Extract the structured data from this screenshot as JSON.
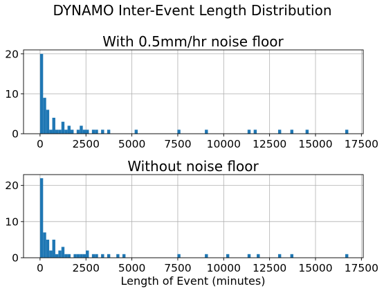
{
  "figure": {
    "suptitle": "DYNAMO Inter-Event Length Distribution"
  },
  "chart_data": [
    {
      "type": "bar",
      "subtype": "histogram",
      "title": "With 0.5mm/hr noise floor",
      "xlabel": "",
      "ylabel": "",
      "xlim": [
        -900,
        17600
      ],
      "ylim": [
        0,
        21
      ],
      "xticks": [
        0,
        2500,
        5000,
        7500,
        10000,
        12500,
        15000,
        17500
      ],
      "xtick_labels": [
        "0",
        "2500",
        "5000",
        "7500",
        "10000",
        "12500",
        "15000",
        "17500"
      ],
      "yticks": [
        0,
        10,
        20
      ],
      "ytick_labels": [
        "0",
        "10",
        "20"
      ],
      "grid": true,
      "color": "#1f77b4",
      "bin_width": 166.2,
      "bins": [
        {
          "x": 0,
          "count": 20
        },
        {
          "x": 166,
          "count": 9
        },
        {
          "x": 332,
          "count": 6
        },
        {
          "x": 499,
          "count": 1
        },
        {
          "x": 665,
          "count": 4
        },
        {
          "x": 831,
          "count": 1
        },
        {
          "x": 997,
          "count": 1
        },
        {
          "x": 1163,
          "count": 3
        },
        {
          "x": 1330,
          "count": 1
        },
        {
          "x": 1496,
          "count": 2
        },
        {
          "x": 1662,
          "count": 1
        },
        {
          "x": 1994,
          "count": 1
        },
        {
          "x": 2161,
          "count": 2
        },
        {
          "x": 2327,
          "count": 1
        },
        {
          "x": 2493,
          "count": 1
        },
        {
          "x": 2825,
          "count": 1
        },
        {
          "x": 2992,
          "count": 1
        },
        {
          "x": 3324,
          "count": 1
        },
        {
          "x": 3656,
          "count": 1
        },
        {
          "x": 5152,
          "count": 1
        },
        {
          "x": 7479,
          "count": 1
        },
        {
          "x": 8975,
          "count": 1
        },
        {
          "x": 11301,
          "count": 1
        },
        {
          "x": 11634,
          "count": 1
        },
        {
          "x": 12964,
          "count": 1
        },
        {
          "x": 13628,
          "count": 1
        },
        {
          "x": 14459,
          "count": 1
        },
        {
          "x": 16620,
          "count": 1
        }
      ]
    },
    {
      "type": "bar",
      "subtype": "histogram",
      "title": "Without noise floor",
      "xlabel": "Length of Event (minutes)",
      "ylabel": "",
      "xlim": [
        -900,
        17600
      ],
      "ylim": [
        0,
        23
      ],
      "xticks": [
        0,
        2500,
        5000,
        7500,
        10000,
        12500,
        15000,
        17500
      ],
      "xtick_labels": [
        "0",
        "2500",
        "5000",
        "7500",
        "10000",
        "12500",
        "15000",
        "17500"
      ],
      "yticks": [
        0,
        10,
        20
      ],
      "ytick_labels": [
        "0",
        "10",
        "20"
      ],
      "grid": true,
      "color": "#1f77b4",
      "bin_width": 166.2,
      "bins": [
        {
          "x": 0,
          "count": 22
        },
        {
          "x": 166,
          "count": 7
        },
        {
          "x": 332,
          "count": 5
        },
        {
          "x": 499,
          "count": 2
        },
        {
          "x": 665,
          "count": 5
        },
        {
          "x": 831,
          "count": 1
        },
        {
          "x": 997,
          "count": 2
        },
        {
          "x": 1163,
          "count": 3
        },
        {
          "x": 1330,
          "count": 1
        },
        {
          "x": 1496,
          "count": 1
        },
        {
          "x": 1828,
          "count": 1
        },
        {
          "x": 1994,
          "count": 1
        },
        {
          "x": 2161,
          "count": 1
        },
        {
          "x": 2327,
          "count": 1
        },
        {
          "x": 2493,
          "count": 2
        },
        {
          "x": 2825,
          "count": 1
        },
        {
          "x": 2992,
          "count": 1
        },
        {
          "x": 3324,
          "count": 1
        },
        {
          "x": 3656,
          "count": 1
        },
        {
          "x": 4155,
          "count": 1
        },
        {
          "x": 4487,
          "count": 1
        },
        {
          "x": 7479,
          "count": 1
        },
        {
          "x": 8975,
          "count": 1
        },
        {
          "x": 10138,
          "count": 1
        },
        {
          "x": 11301,
          "count": 1
        },
        {
          "x": 11800,
          "count": 1
        },
        {
          "x": 12964,
          "count": 1
        },
        {
          "x": 13628,
          "count": 1
        },
        {
          "x": 16620,
          "count": 1
        }
      ]
    }
  ]
}
